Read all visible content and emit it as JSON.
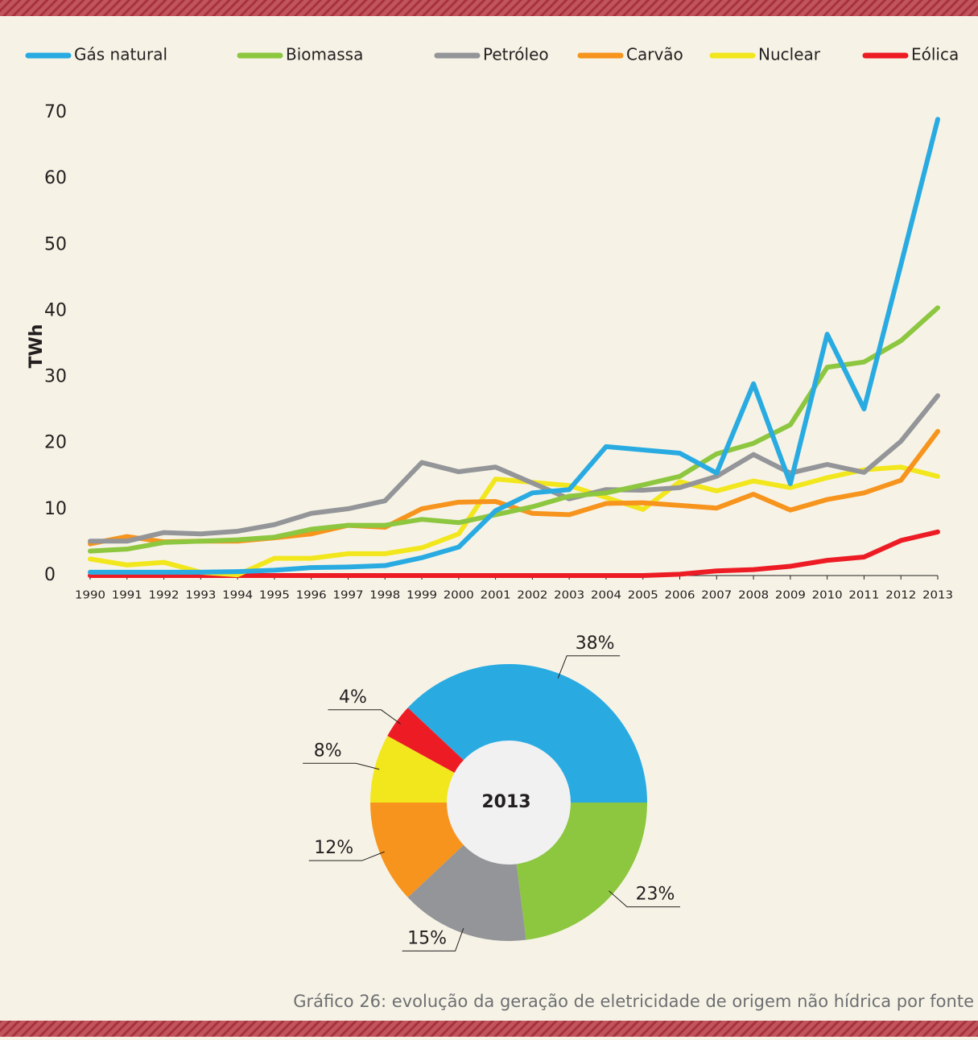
{
  "chart_data": [
    {
      "type": "line",
      "ylabel": "TWh",
      "categories": [
        "1990",
        "1991",
        "1992",
        "1993",
        "1994",
        "1995",
        "1996",
        "1997",
        "1998",
        "1999",
        "2000",
        "2001",
        "2002",
        "2003",
        "2004",
        "2005",
        "2006",
        "2007",
        "2008",
        "2009",
        "2010",
        "2011",
        "2012",
        "2013"
      ],
      "ylim": [
        0,
        70
      ],
      "yticks": [
        0,
        10,
        20,
        30,
        40,
        50,
        60,
        70
      ],
      "grid": false,
      "legend": "top",
      "series": [
        {
          "name": "Gás natural",
          "color": "#29abe2",
          "values": [
            0.5,
            0.5,
            0.5,
            0.5,
            0.6,
            0.8,
            1.2,
            1.3,
            1.5,
            2.7,
            4.3,
            9.8,
            12.5,
            13.0,
            19.5,
            19.0,
            18.5,
            15.5,
            29.0,
            13.9,
            36.5,
            25.2,
            47.0,
            69.0
          ]
        },
        {
          "name": "Biomassa",
          "color": "#8dc63f",
          "values": [
            3.7,
            4.0,
            5.0,
            5.2,
            5.4,
            5.8,
            7.0,
            7.6,
            7.6,
            8.5,
            8.0,
            9.2,
            10.4,
            12.0,
            12.5,
            13.7,
            15.0,
            18.4,
            20.0,
            22.8,
            31.5,
            32.3,
            35.5,
            40.5
          ]
        },
        {
          "name": "Petróleo",
          "color": "#939598",
          "values": [
            5.2,
            5.2,
            6.5,
            6.3,
            6.7,
            7.7,
            9.4,
            10.1,
            11.3,
            17.1,
            15.7,
            16.4,
            14.0,
            11.6,
            13.0,
            12.9,
            13.3,
            15.0,
            18.3,
            15.5,
            16.8,
            15.6,
            20.3,
            27.2
          ]
        },
        {
          "name": "Carvão",
          "color": "#f7941d",
          "values": [
            4.8,
            5.9,
            5.1,
            5.2,
            5.2,
            5.7,
            6.3,
            7.6,
            7.3,
            10.1,
            11.1,
            11.2,
            9.4,
            9.2,
            10.9,
            11.0,
            10.6,
            10.2,
            12.3,
            9.9,
            11.5,
            12.5,
            14.4,
            21.8
          ]
        },
        {
          "name": "Nuclear",
          "color": "#f2e61c",
          "values": [
            2.5,
            1.6,
            2.0,
            0.5,
            0.1,
            2.6,
            2.6,
            3.3,
            3.3,
            4.2,
            6.3,
            14.6,
            14.1,
            13.6,
            11.8,
            10.0,
            14.2,
            12.8,
            14.3,
            13.3,
            14.8,
            16.0,
            16.4,
            15.0
          ]
        },
        {
          "name": "Eólica",
          "color": "#ed1c24",
          "values": [
            0,
            0,
            0,
            0,
            0,
            0,
            0,
            0,
            0,
            0,
            0,
            0,
            0,
            0,
            0,
            0,
            0.2,
            0.7,
            0.9,
            1.4,
            2.3,
            2.8,
            5.3,
            6.6
          ]
        }
      ]
    },
    {
      "type": "donut",
      "center_label": "2013",
      "values": [
        38,
        23,
        15,
        12,
        8,
        4
      ],
      "value_labels": [
        "38%",
        "23%",
        "15%",
        "12%",
        "8%",
        "4%"
      ],
      "colors": [
        "#29abe2",
        "#8dc63f",
        "#939598",
        "#f7941d",
        "#f2e61c",
        "#ed1c24"
      ]
    }
  ],
  "caption": "Gráfico 26: evolução da geração de eletricidade de origem não hídrica por fonte"
}
